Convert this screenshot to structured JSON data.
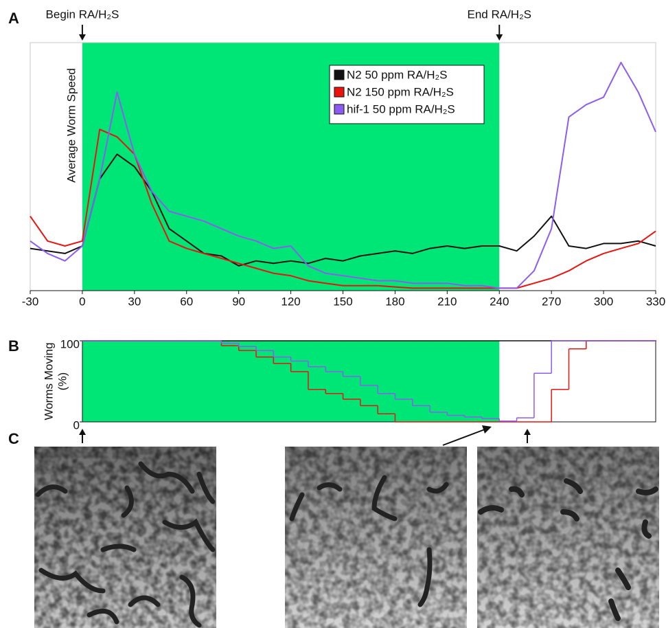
{
  "panel_labels": [
    "A",
    "B",
    "C"
  ],
  "chart_data": [
    {
      "type": "line",
      "ylabel": "Average Worm Speed",
      "xlim": [
        -30,
        330
      ],
      "ylim": [
        0,
        100
      ],
      "xticks": [
        -30,
        0,
        30,
        60,
        90,
        120,
        150,
        180,
        210,
        240,
        270,
        300,
        330
      ],
      "highlight": {
        "xlim": [
          0,
          240
        ],
        "color": "#00e676"
      },
      "annotations": [
        {
          "text": "Begin RA/H₂S",
          "x": 0
        },
        {
          "text": "End RA/H₂S",
          "x": 240
        }
      ],
      "legend": "upper right",
      "x": [
        -30,
        -20,
        -10,
        0,
        10,
        20,
        30,
        40,
        50,
        60,
        70,
        80,
        90,
        100,
        110,
        120,
        130,
        140,
        150,
        160,
        170,
        180,
        190,
        200,
        210,
        220,
        230,
        240,
        250,
        260,
        270,
        280,
        290,
        300,
        310,
        320,
        330
      ],
      "series": [
        {
          "name": "N2 50 ppm RA/H₂S",
          "color": "#111111",
          "values": [
            17,
            16,
            15,
            18,
            45,
            55,
            50,
            40,
            25,
            20,
            15,
            14,
            10,
            12,
            11,
            12,
            11,
            13,
            12,
            14,
            15,
            16,
            15,
            17,
            18,
            17,
            18,
            18,
            16,
            22,
            30,
            18,
            17,
            19,
            19,
            20,
            18
          ]
        },
        {
          "name": "N2 150 ppm RA/H₂S",
          "color": "#e8140f",
          "values": [
            30,
            20,
            18,
            20,
            65,
            62,
            55,
            35,
            20,
            17,
            15,
            13,
            11,
            9,
            7,
            6,
            4,
            3,
            2,
            2,
            2,
            1.5,
            1,
            1,
            1,
            1,
            1,
            1,
            1,
            3,
            5,
            8,
            12,
            15,
            17,
            19,
            24
          ]
        },
        {
          "name": "hif-1 50 ppm RA/H₂S",
          "color": "#8c5cf0",
          "values": [
            20,
            15,
            12,
            18,
            45,
            80,
            55,
            40,
            32,
            30,
            28,
            25,
            22,
            20,
            17,
            18,
            10,
            7,
            6,
            5,
            4,
            4,
            3,
            3,
            3,
            2,
            2,
            1,
            1,
            8,
            25,
            70,
            75,
            78,
            92,
            80,
            64
          ]
        }
      ]
    },
    {
      "type": "step",
      "ylabel_lines": [
        "Worms Moving",
        "(%)"
      ],
      "xlim": [
        0,
        330
      ],
      "ylim": [
        0,
        100
      ],
      "yticks": [
        0,
        100
      ],
      "highlight": {
        "xlim": [
          0,
          240
        ],
        "color": "#00e676"
      },
      "x": [
        0,
        10,
        20,
        30,
        40,
        50,
        60,
        70,
        80,
        90,
        100,
        110,
        120,
        130,
        140,
        150,
        160,
        170,
        180,
        190,
        200,
        210,
        220,
        230,
        240,
        250,
        260,
        270,
        280,
        290,
        300,
        310,
        320,
        330
      ],
      "series": [
        {
          "color": "#111111",
          "values": [
            100,
            100,
            100,
            100,
            100,
            100,
            100,
            100,
            100,
            100,
            100,
            100,
            100,
            100,
            100,
            100,
            100,
            100,
            100,
            100,
            100,
            100,
            100,
            100,
            100,
            100,
            100,
            100,
            100,
            100,
            100,
            100,
            100,
            100
          ]
        },
        {
          "color": "#e8140f",
          "values": [
            100,
            100,
            100,
            100,
            100,
            100,
            100,
            100,
            94,
            88,
            80,
            72,
            62,
            40,
            35,
            28,
            20,
            10,
            0,
            0,
            0,
            0,
            0,
            0,
            0,
            0,
            0,
            40,
            90,
            100,
            100,
            100,
            100,
            100
          ]
        },
        {
          "color": "#8c5cf0",
          "values": [
            100,
            100,
            100,
            100,
            100,
            100,
            100,
            100,
            97,
            93,
            88,
            80,
            75,
            68,
            62,
            56,
            45,
            35,
            28,
            20,
            12,
            8,
            6,
            4,
            1,
            5,
            60,
            100,
            100,
            100,
            100,
            100,
            100,
            100
          ]
        }
      ]
    }
  ]
}
